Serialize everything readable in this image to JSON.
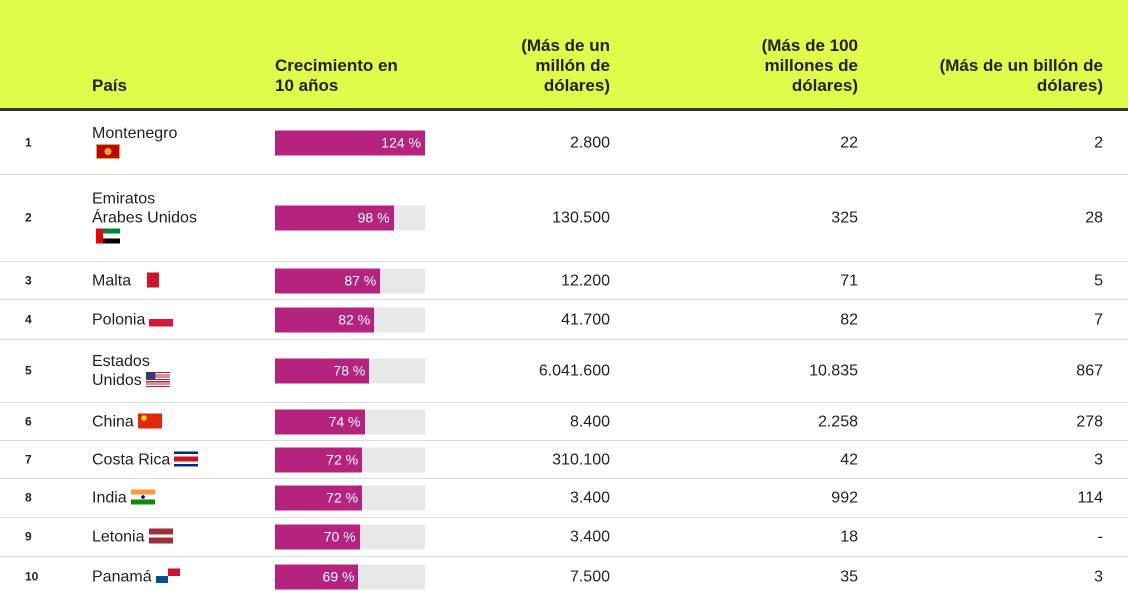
{
  "table": {
    "headers": [
      "País",
      "Crecimiento en 10 años",
      "(Más de un millón de dólares)",
      "(Más de 100 millones de dólares)",
      "(Más de un billón de dólares)"
    ],
    "rows": [
      {
        "rank": "1",
        "country": "Montenegro",
        "growth": {
          "value": 124,
          "label": "124 %"
        },
        "c1": "2.800",
        "c2": "22",
        "c3": "2"
      },
      {
        "rank": "2",
        "country": "Emiratos Árabes Unidos",
        "growth": {
          "value": 98,
          "label": "98 %"
        },
        "c1": "130.500",
        "c2": "325",
        "c3": "28"
      },
      {
        "rank": "3",
        "country": "Malta",
        "growth": {
          "value": 87,
          "label": "87 %"
        },
        "c1": "12.200",
        "c2": "71",
        "c3": "5"
      },
      {
        "rank": "4",
        "country": "Polonia",
        "growth": {
          "value": 82,
          "label": "82 %"
        },
        "c1": "41.700",
        "c2": "82",
        "c3": "7"
      },
      {
        "rank": "5",
        "country": "Estados Unidos",
        "growth": {
          "value": 78,
          "label": "78 %"
        },
        "c1": "6.041.600",
        "c2": "10.835",
        "c3": "867"
      },
      {
        "rank": "6",
        "country": "China",
        "growth": {
          "value": 74,
          "label": "74 %"
        },
        "c1": "8.400",
        "c2": "2.258",
        "c3": "278"
      },
      {
        "rank": "7",
        "country": "Costa Rica",
        "growth": {
          "value": 72,
          "label": "72 %"
        },
        "c1": "310.100",
        "c2": "42",
        "c3": "3"
      },
      {
        "rank": "8",
        "country": "India",
        "growth": {
          "value": 72,
          "label": "72 %"
        },
        "c1": "3.400",
        "c2": "992",
        "c3": "114"
      },
      {
        "rank": "9",
        "country": "Letonia",
        "growth": {
          "value": 70,
          "label": "70 %"
        },
        "c1": "3.400",
        "c2": "18",
        "c3": "-"
      },
      {
        "rank": "10",
        "country": "Panamá",
        "growth": {
          "value": 69,
          "label": "69 %"
        },
        "c1": "7.500",
        "c2": "35",
        "c3": "3"
      }
    ]
  }
}
